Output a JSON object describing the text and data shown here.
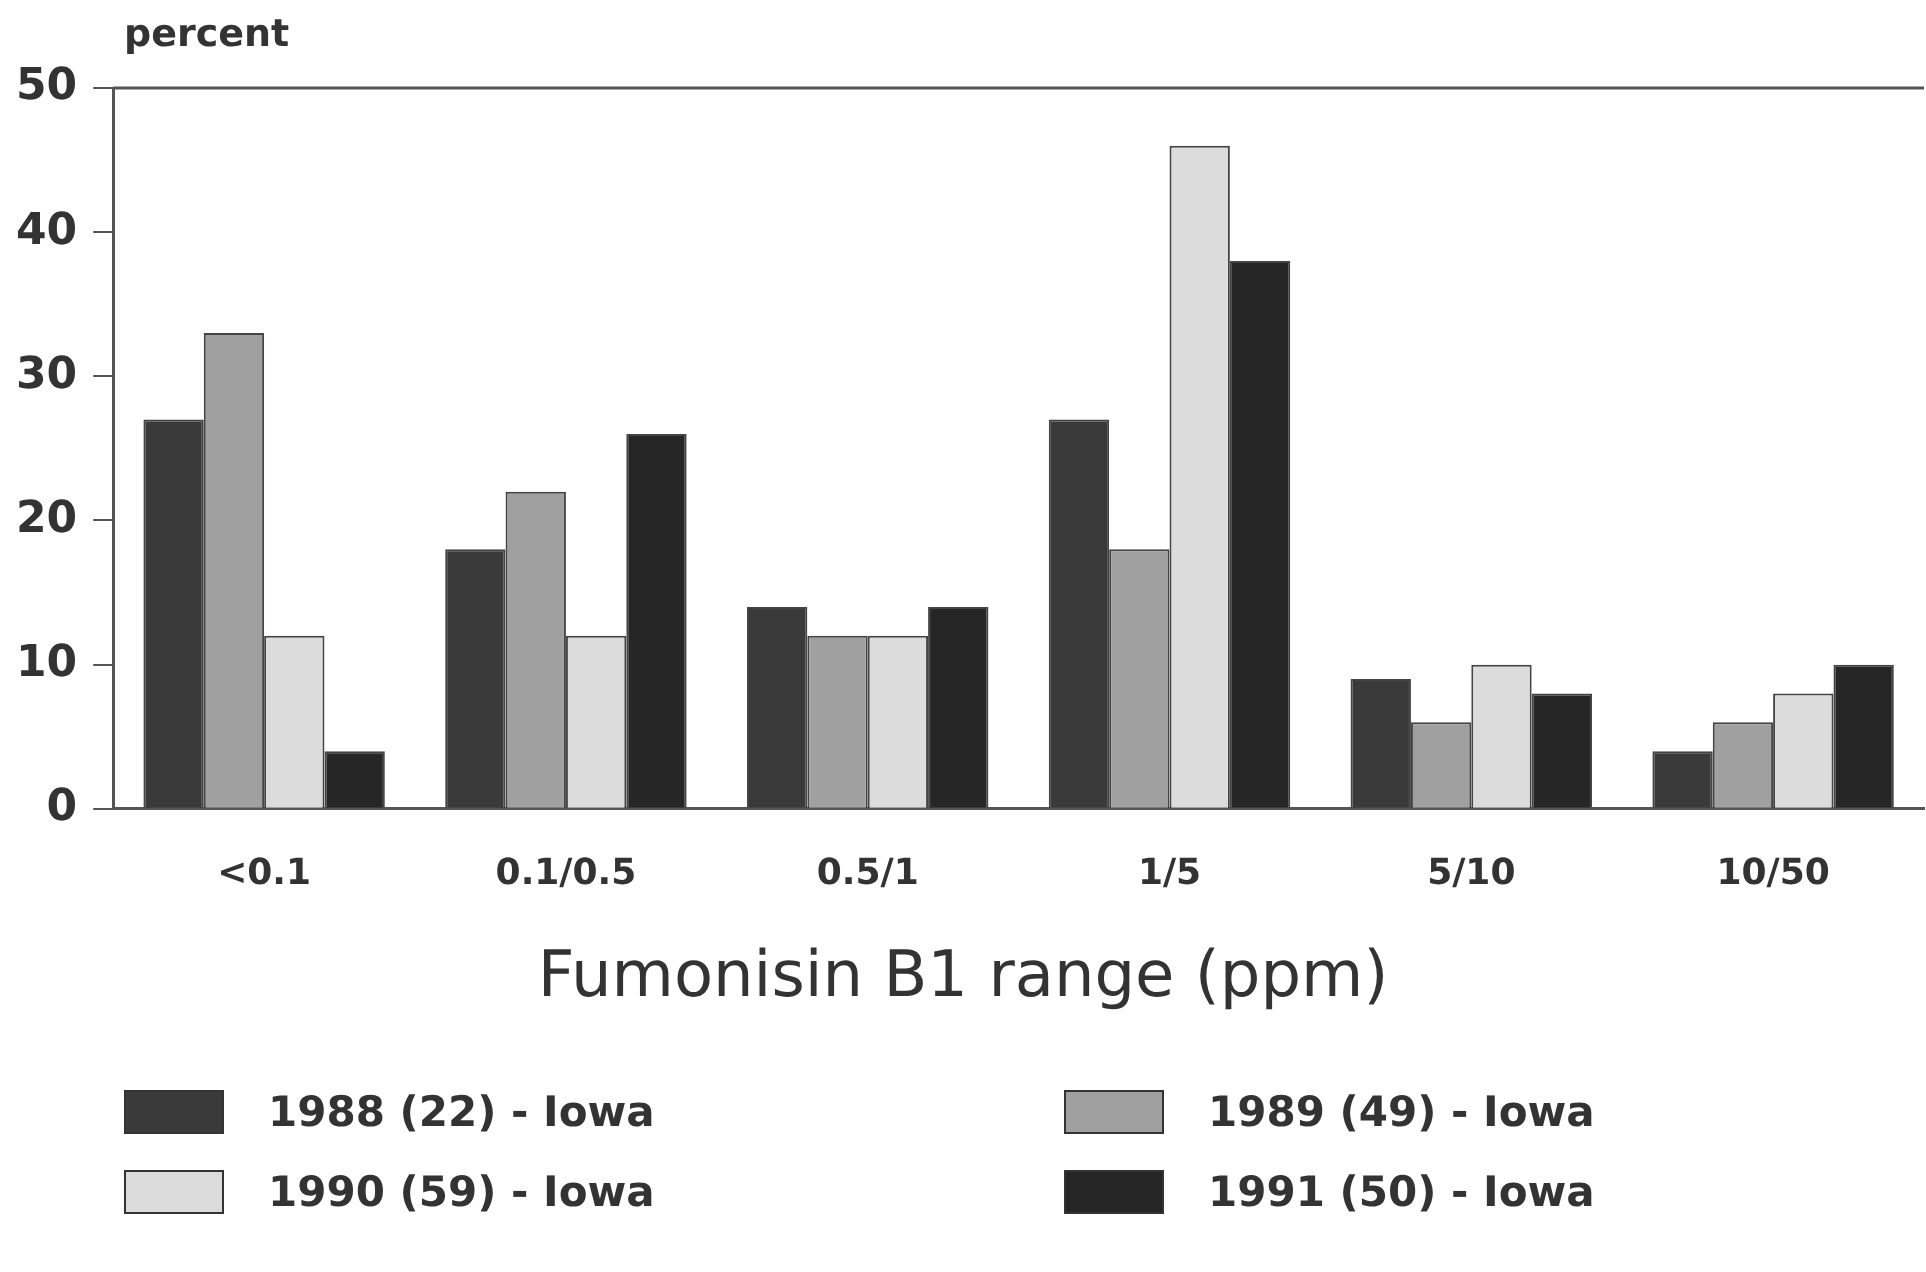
{
  "chart_data": {
    "type": "bar",
    "ylabel": "percent",
    "xlabel": "Fumonisin B1 range (ppm)",
    "categories": [
      "<0.1",
      "0.1/0.5",
      "0.5/1",
      "1/5",
      "5/10",
      "10/50"
    ],
    "series": [
      {
        "name": "1988 (22) - Iowa",
        "color": "#3a3a3a",
        "values": [
          27,
          18,
          14,
          27,
          9,
          4
        ]
      },
      {
        "name": "1989 (49) - Iowa",
        "color": "#a0a0a0",
        "values": [
          33,
          22,
          12,
          18,
          6,
          6
        ]
      },
      {
        "name": "1990 (59) - Iowa",
        "color": "#dcdcdc",
        "values": [
          12,
          12,
          12,
          46,
          10,
          8
        ]
      },
      {
        "name": "1991 (50) - Iowa",
        "color": "#262626",
        "values": [
          4,
          26,
          14,
          38,
          8,
          10
        ]
      }
    ],
    "ylim": [
      0,
      50
    ],
    "yticks": [
      0,
      10,
      20,
      30,
      40,
      50
    ],
    "grid": false,
    "legend": "bottom"
  }
}
